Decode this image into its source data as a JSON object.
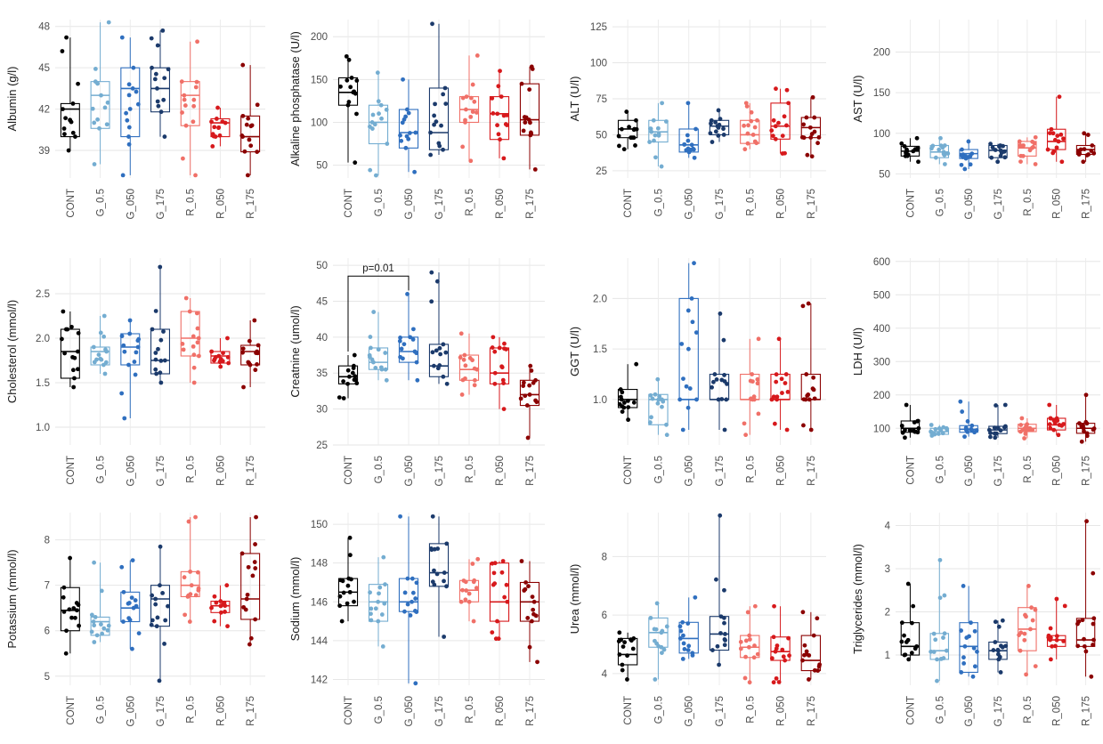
{
  "figure": {
    "groups": [
      "CONT",
      "G_0.5",
      "G_050",
      "G_175",
      "R_0.5",
      "R_050",
      "R_175"
    ],
    "group_colors": [
      "#000000",
      "#74add1",
      "#2f6fbf",
      "#1b3a6b",
      "#f07068",
      "#d7191c",
      "#8b0000"
    ]
  },
  "chart_data": [
    {
      "type": "box",
      "ylabel": "Albumin (g/l)",
      "yticks": [
        39,
        42,
        45,
        48
      ],
      "ylim": [
        37,
        48.5
      ],
      "boxes": [
        {
          "group": "CONT",
          "q1": 40,
          "median": 42,
          "q3": 42.4,
          "whisker_low": 39,
          "whisker_high": 47.2
        },
        {
          "group": "G_0.5",
          "q1": 40.6,
          "median": 43,
          "q3": 44,
          "whisker_low": 38,
          "whisker_high": 48.3
        },
        {
          "group": "G_050",
          "q1": 40,
          "median": 43.5,
          "q3": 45,
          "whisker_low": 37.2,
          "whisker_high": 47.2
        },
        {
          "group": "G_175",
          "q1": 41.8,
          "median": 43.5,
          "q3": 45,
          "whisker_low": 40,
          "whisker_high": 47.7
        },
        {
          "group": "R_0.5",
          "q1": 40.8,
          "median": 43,
          "q3": 44,
          "whisker_low": 37.2,
          "whisker_high": 46.9
        },
        {
          "group": "R_050",
          "q1": 40,
          "median": 41,
          "q3": 41.3,
          "whisker_low": 39.3,
          "whisker_high": 42.1
        },
        {
          "group": "R_175",
          "q1": 38.9,
          "median": 40,
          "q3": 41.5,
          "whisker_low": 37.2,
          "whisker_high": 45.2
        }
      ]
    },
    {
      "type": "box",
      "ylabel": "Alkaline phosphatase (U/l)",
      "yticks": [
        50,
        100,
        150,
        200
      ],
      "ylim": [
        35,
        220
      ],
      "boxes": [
        {
          "group": "CONT",
          "q1": 120,
          "median": 135,
          "q3": 152,
          "whisker_low": 53,
          "whisker_high": 177
        },
        {
          "group": "G_0.5",
          "q1": 75,
          "median": 100,
          "q3": 120,
          "whisker_low": 38,
          "whisker_high": 158
        },
        {
          "group": "G_050",
          "q1": 70,
          "median": 88,
          "q3": 115,
          "whisker_low": 42,
          "whisker_high": 150
        },
        {
          "group": "G_175",
          "q1": 68,
          "median": 88,
          "q3": 140,
          "whisker_low": 62,
          "whisker_high": 215
        },
        {
          "group": "R_0.5",
          "q1": 100,
          "median": 115,
          "q3": 130,
          "whisker_low": 55,
          "whisker_high": 178
        },
        {
          "group": "R_050",
          "q1": 80,
          "median": 110,
          "q3": 130,
          "whisker_low": 58,
          "whisker_high": 160
        },
        {
          "group": "R_175",
          "q1": 85,
          "median": 103,
          "q3": 145,
          "whisker_low": 45,
          "whisker_high": 165
        }
      ]
    },
    {
      "type": "box",
      "ylabel": "ALT (U/l)",
      "yticks": [
        25,
        50,
        75,
        100,
        125
      ],
      "ylim": [
        20,
        130
      ],
      "boxes": [
        {
          "group": "CONT",
          "q1": 48,
          "median": 54,
          "q3": 60,
          "whisker_low": 40,
          "whisker_high": 66
        },
        {
          "group": "G_0.5",
          "q1": 45,
          "median": 52,
          "q3": 60,
          "whisker_low": 28,
          "whisker_high": 72
        },
        {
          "group": "G_050",
          "q1": 38,
          "median": 43,
          "q3": 54,
          "whisker_low": 34,
          "whisker_high": 72
        },
        {
          "group": "G_175",
          "q1": 50,
          "median": 56,
          "q3": 60,
          "whisker_low": 45,
          "whisker_high": 67
        },
        {
          "group": "R_0.5",
          "q1": 44,
          "median": 50,
          "q3": 60,
          "whisker_low": 40,
          "whisker_high": 72
        },
        {
          "group": "R_050",
          "q1": 47,
          "median": 56,
          "q3": 72,
          "whisker_low": 37,
          "whisker_high": 82
        },
        {
          "group": "R_175",
          "q1": 48,
          "median": 55,
          "q3": 62,
          "whisker_low": 35,
          "whisker_high": 76
        }
      ]
    },
    {
      "type": "box",
      "ylabel": "AST (U/l)",
      "yticks": [
        50,
        100,
        150,
        200
      ],
      "ylim": [
        45,
        240
      ],
      "boxes": [
        {
          "group": "CONT",
          "q1": 72,
          "median": 78,
          "q3": 84,
          "whisker_low": 65,
          "whisker_high": 94
        },
        {
          "group": "G_0.5",
          "q1": 70,
          "median": 77,
          "q3": 85,
          "whisker_low": 62,
          "whisker_high": 94
        },
        {
          "group": "G_050",
          "q1": 69,
          "median": 75,
          "q3": 80,
          "whisker_low": 56,
          "whisker_high": 90
        },
        {
          "group": "G_175",
          "q1": 70,
          "median": 79,
          "q3": 85,
          "whisker_low": 65,
          "whisker_high": 87
        },
        {
          "group": "R_0.5",
          "q1": 72,
          "median": 82,
          "q3": 90,
          "whisker_low": 62,
          "whisker_high": 95
        },
        {
          "group": "R_050",
          "q1": 80,
          "median": 90,
          "q3": 105,
          "whisker_low": 65,
          "whisker_high": 145
        },
        {
          "group": "R_175",
          "q1": 74,
          "median": 80,
          "q3": 85,
          "whisker_low": 65,
          "whisker_high": 100
        }
      ]
    },
    {
      "type": "box",
      "ylabel": "Cholesterol (mmol/l)",
      "yticks": [
        1.0,
        1.5,
        2.0,
        2.5
      ],
      "ylim": [
        0.8,
        2.9
      ],
      "boxes": [
        {
          "group": "CONT",
          "q1": 1.55,
          "median": 1.85,
          "q3": 2.1,
          "whisker_low": 1.45,
          "whisker_high": 2.3
        },
        {
          "group": "G_0.5",
          "q1": 1.7,
          "median": 1.85,
          "q3": 1.9,
          "whisker_low": 1.6,
          "whisker_high": 2.25
        },
        {
          "group": "G_050",
          "q1": 1.7,
          "median": 1.9,
          "q3": 2.05,
          "whisker_low": 1.1,
          "whisker_high": 2.2
        },
        {
          "group": "G_175",
          "q1": 1.6,
          "median": 1.75,
          "q3": 2.1,
          "whisker_low": 1.5,
          "whisker_high": 2.8
        },
        {
          "group": "R_0.5",
          "q1": 1.8,
          "median": 2.0,
          "q3": 2.3,
          "whisker_low": 1.5,
          "whisker_high": 2.45
        },
        {
          "group": "R_050",
          "q1": 1.72,
          "median": 1.8,
          "q3": 1.85,
          "whisker_low": 1.68,
          "whisker_high": 2.0
        },
        {
          "group": "R_175",
          "q1": 1.7,
          "median": 1.85,
          "q3": 1.92,
          "whisker_low": 1.45,
          "whisker_high": 2.2
        }
      ]
    },
    {
      "type": "box",
      "ylabel": "Creatnine (umol/l)",
      "yticks": [
        25,
        30,
        35,
        40,
        45,
        50
      ],
      "ylim": [
        25,
        51
      ],
      "annotation": "p=0.01",
      "annotation_groups": [
        "CONT",
        "G_050"
      ],
      "annotation_y": 48.5,
      "boxes": [
        {
          "group": "CONT",
          "q1": 33.5,
          "median": 34.5,
          "q3": 36,
          "whisker_low": 31.5,
          "whisker_high": 37.5
        },
        {
          "group": "G_0.5",
          "q1": 35.5,
          "median": 36.5,
          "q3": 38.5,
          "whisker_low": 34,
          "whisker_high": 43.5
        },
        {
          "group": "G_050",
          "q1": 36.5,
          "median": 38,
          "q3": 40,
          "whisker_low": 34,
          "whisker_high": 46
        },
        {
          "group": "G_175",
          "q1": 34.5,
          "median": 36,
          "q3": 39,
          "whisker_low": 33.5,
          "whisker_high": 49
        },
        {
          "group": "R_0.5",
          "q1": 34,
          "median": 35.5,
          "q3": 37.5,
          "whisker_low": 32,
          "whisker_high": 40.5
        },
        {
          "group": "R_050",
          "q1": 33.5,
          "median": 35,
          "q3": 38.5,
          "whisker_low": 30,
          "whisker_high": 40
        },
        {
          "group": "R_175",
          "q1": 30.5,
          "median": 32,
          "q3": 34,
          "whisker_low": 26,
          "whisker_high": 36
        }
      ]
    },
    {
      "type": "box",
      "ylabel": "GGT (U/l)",
      "yticks": [
        1.0,
        1.5,
        2.0
      ],
      "ylim": [
        0.55,
        2.4
      ],
      "boxes": [
        {
          "group": "CONT",
          "q1": 0.92,
          "median": 1.0,
          "q3": 1.1,
          "whisker_low": 0.8,
          "whisker_high": 1.35
        },
        {
          "group": "G_0.5",
          "q1": 0.75,
          "median": 1.0,
          "q3": 1.05,
          "whisker_low": 0.65,
          "whisker_high": 1.2
        },
        {
          "group": "G_050",
          "q1": 1.0,
          "median": 1.0,
          "q3": 2.0,
          "whisker_low": 0.7,
          "whisker_high": 2.35
        },
        {
          "group": "G_175",
          "q1": 1.0,
          "median": 1.0,
          "q3": 1.25,
          "whisker_low": 0.7,
          "whisker_high": 1.85
        },
        {
          "group": "R_0.5",
          "q1": 1.0,
          "median": 1.0,
          "q3": 1.25,
          "whisker_low": 0.65,
          "whisker_high": 1.6
        },
        {
          "group": "R_050",
          "q1": 1.0,
          "median": 1.0,
          "q3": 1.25,
          "whisker_low": 0.7,
          "whisker_high": 1.6
        },
        {
          "group": "R_175",
          "q1": 1.0,
          "median": 1.0,
          "q3": 1.25,
          "whisker_low": 0.7,
          "whisker_high": 1.95
        }
      ]
    },
    {
      "type": "box",
      "ylabel": "LDH (U/l)",
      "yticks": [
        100,
        200,
        300,
        400,
        500,
        600
      ],
      "ylim": [
        50,
        610
      ],
      "boxes": [
        {
          "group": "CONT",
          "q1": 88,
          "median": 100,
          "q3": 122,
          "whisker_low": 72,
          "whisker_high": 170
        },
        {
          "group": "G_0.5",
          "q1": 82,
          "median": 90,
          "q3": 100,
          "whisker_low": 78,
          "whisker_high": 110
        },
        {
          "group": "G_050",
          "q1": 88,
          "median": 97,
          "q3": 108,
          "whisker_low": 75,
          "whisker_high": 180
        },
        {
          "group": "G_175",
          "q1": 84,
          "median": 95,
          "q3": 106,
          "whisker_low": 72,
          "whisker_high": 170
        },
        {
          "group": "R_0.5",
          "q1": 90,
          "median": 100,
          "q3": 112,
          "whisker_low": 70,
          "whisker_high": 130
        },
        {
          "group": "R_050",
          "q1": 95,
          "median": 110,
          "q3": 130,
          "whisker_low": 80,
          "whisker_high": 170
        },
        {
          "group": "R_175",
          "q1": 85,
          "median": 100,
          "q3": 115,
          "whisker_low": 60,
          "whisker_high": 200
        }
      ]
    },
    {
      "type": "box",
      "ylabel": "Potassium (mmol/l)",
      "yticks": [
        5,
        6,
        7,
        8
      ],
      "ylim": [
        4.8,
        8.6
      ],
      "boxes": [
        {
          "group": "CONT",
          "q1": 6.0,
          "median": 6.45,
          "q3": 6.95,
          "whisker_low": 5.5,
          "whisker_high": 7.6
        },
        {
          "group": "G_0.5",
          "q1": 5.9,
          "median": 6.2,
          "q3": 6.3,
          "whisker_low": 5.75,
          "whisker_high": 7.5
        },
        {
          "group": "G_050",
          "q1": 6.2,
          "median": 6.5,
          "q3": 6.85,
          "whisker_low": 5.6,
          "whisker_high": 7.55
        },
        {
          "group": "G_175",
          "q1": 6.1,
          "median": 6.7,
          "q3": 7.0,
          "whisker_low": 4.9,
          "whisker_high": 7.85
        },
        {
          "group": "R_0.5",
          "q1": 6.75,
          "median": 7.0,
          "q3": 7.3,
          "whisker_low": 6.2,
          "whisker_high": 8.5
        },
        {
          "group": "R_050",
          "q1": 6.4,
          "median": 6.55,
          "q3": 6.65,
          "whisker_low": 6.1,
          "whisker_high": 7.0
        },
        {
          "group": "R_175",
          "q1": 6.25,
          "median": 6.7,
          "q3": 7.7,
          "whisker_low": 5.7,
          "whisker_high": 8.5
        }
      ]
    },
    {
      "type": "box",
      "ylabel": "Sodium (mmol/l)",
      "yticks": [
        142,
        144,
        146,
        148,
        150
      ],
      "ylim": [
        141.7,
        150.6
      ],
      "boxes": [
        {
          "group": "CONT",
          "q1": 145.8,
          "median": 146.5,
          "q3": 147.2,
          "whisker_low": 145,
          "whisker_high": 149.3
        },
        {
          "group": "G_0.5",
          "q1": 145,
          "median": 146,
          "q3": 146.9,
          "whisker_low": 143.7,
          "whisker_high": 148.3
        },
        {
          "group": "G_050",
          "q1": 145.5,
          "median": 146,
          "q3": 147.2,
          "whisker_low": 141.8,
          "whisker_high": 150.4
        },
        {
          "group": "G_175",
          "q1": 146.8,
          "median": 147.5,
          "q3": 149,
          "whisker_low": 144.2,
          "whisker_high": 150.4
        },
        {
          "group": "R_0.5",
          "q1": 146,
          "median": 146.6,
          "q3": 147.1,
          "whisker_low": 145,
          "whisker_high": 148.2
        },
        {
          "group": "R_050",
          "q1": 145,
          "median": 146,
          "q3": 148,
          "whisker_low": 144.1,
          "whisker_high": 148.1
        },
        {
          "group": "R_175",
          "q1": 145,
          "median": 146,
          "q3": 147,
          "whisker_low": 142.9,
          "whisker_high": 148.1
        }
      ]
    },
    {
      "type": "box",
      "ylabel": "Urea (mmol/l)",
      "yticks": [
        4,
        6,
        8
      ],
      "ylim": [
        3.6,
        9.5
      ],
      "boxes": [
        {
          "group": "CONT",
          "q1": 4.3,
          "median": 4.65,
          "q3": 5.2,
          "whisker_low": 3.8,
          "whisker_high": 5.4
        },
        {
          "group": "G_0.5",
          "q1": 4.9,
          "median": 5.4,
          "q3": 5.9,
          "whisker_low": 3.8,
          "whisker_high": 6.4
        },
        {
          "group": "G_050",
          "q1": 4.7,
          "median": 5.2,
          "q3": 5.75,
          "whisker_low": 4.5,
          "whisker_high": 6.6
        },
        {
          "group": "G_175",
          "q1": 4.8,
          "median": 5.35,
          "q3": 5.95,
          "whisker_low": 4.3,
          "whisker_high": 9.4
        },
        {
          "group": "R_0.5",
          "q1": 4.55,
          "median": 4.9,
          "q3": 5.3,
          "whisker_low": 3.7,
          "whisker_high": 6.3
        },
        {
          "group": "R_050",
          "q1": 4.45,
          "median": 4.75,
          "q3": 5.25,
          "whisker_low": 3.7,
          "whisker_high": 6.3
        },
        {
          "group": "R_175",
          "q1": 4.1,
          "median": 4.45,
          "q3": 5.3,
          "whisker_low": 3.8,
          "whisker_high": 6.1
        }
      ]
    },
    {
      "type": "box",
      "ylabel": "Triglycerides (mmol/l)",
      "yticks": [
        1,
        2,
        3,
        4
      ],
      "ylim": [
        0.3,
        4.3
      ],
      "boxes": [
        {
          "group": "CONT",
          "q1": 1.0,
          "median": 1.2,
          "q3": 1.75,
          "whisker_low": 0.9,
          "whisker_high": 2.65
        },
        {
          "group": "G_0.5",
          "q1": 0.9,
          "median": 1.1,
          "q3": 1.5,
          "whisker_low": 0.4,
          "whisker_high": 3.2
        },
        {
          "group": "G_050",
          "q1": 0.6,
          "median": 1.2,
          "q3": 1.75,
          "whisker_low": 0.5,
          "whisker_high": 2.6
        },
        {
          "group": "G_175",
          "q1": 0.9,
          "median": 1.1,
          "q3": 1.3,
          "whisker_low": 0.6,
          "whisker_high": 1.8
        },
        {
          "group": "R_0.5",
          "q1": 1.1,
          "median": 1.6,
          "q3": 2.1,
          "whisker_low": 0.55,
          "whisker_high": 2.6
        },
        {
          "group": "R_050",
          "q1": 1.2,
          "median": 1.35,
          "q3": 1.45,
          "whisker_low": 0.9,
          "whisker_high": 2.3
        },
        {
          "group": "R_175",
          "q1": 1.2,
          "median": 1.35,
          "q3": 1.85,
          "whisker_low": 0.5,
          "whisker_high": 4.1
        }
      ]
    }
  ]
}
